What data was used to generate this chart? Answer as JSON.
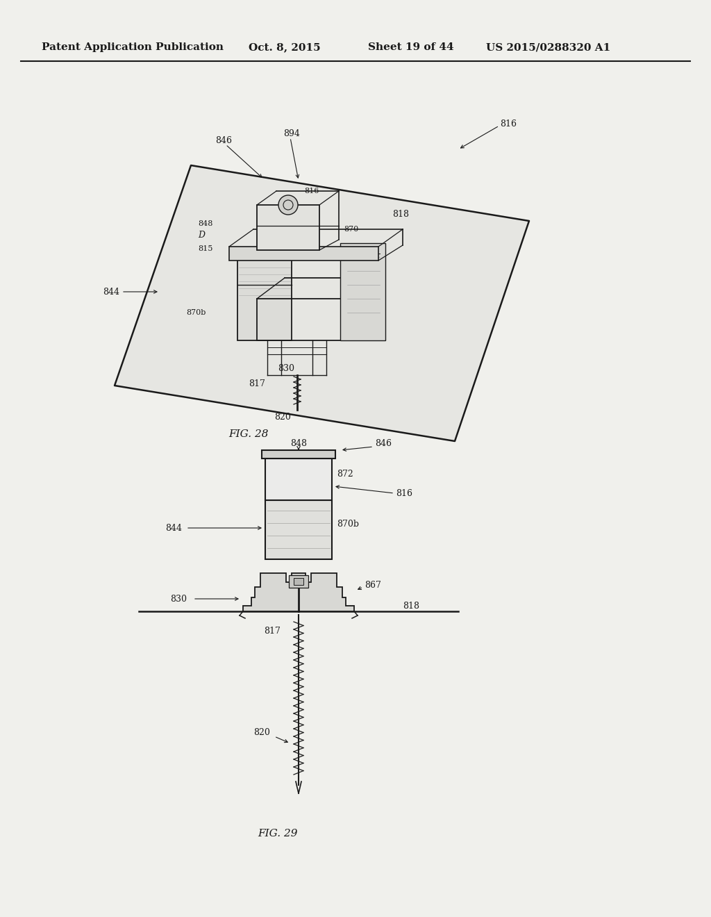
{
  "bg_color": "#f0f0ec",
  "line_color": "#1a1a1a",
  "header_text": "Patent Application Publication",
  "header_date": "Oct. 8, 2015",
  "header_sheet": "Sheet 19 of 44",
  "header_patent": "US 2015/0288320 A1",
  "fig28_label": "FIG. 28",
  "fig29_label": "FIG. 29"
}
